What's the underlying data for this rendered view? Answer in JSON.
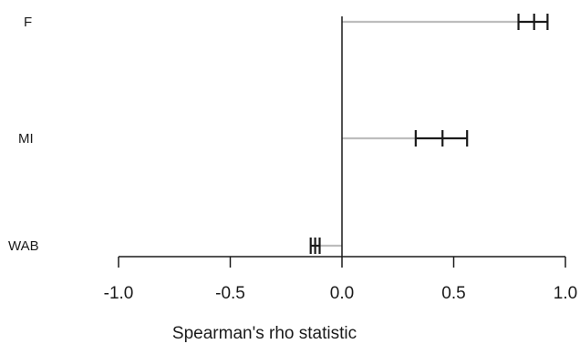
{
  "chart_data": {
    "type": "forest",
    "xlabel": "Spearman's rho statistic",
    "xlim": [
      -1.0,
      1.0
    ],
    "xticks": [
      -1.0,
      -0.5,
      0.0,
      0.5,
      1.0
    ],
    "xtick_labels": [
      "-1.0",
      "-0.5",
      "0.0",
      "0.5",
      "1.0"
    ],
    "reference_value": 0.0,
    "grid": false,
    "categories": [
      "F",
      "MI",
      "WAB"
    ],
    "series": [
      {
        "label": "F",
        "estimate": 0.86,
        "lower": 0.79,
        "upper": 0.92
      },
      {
        "label": "MI",
        "estimate": 0.45,
        "lower": 0.33,
        "upper": 0.56
      },
      {
        "label": "WAB",
        "estimate": -0.12,
        "lower": -0.14,
        "upper": -0.1
      }
    ],
    "colors": {
      "stem": "#bdbdbd",
      "interval": "#1a1a1a",
      "axis": "#1a1a1a"
    }
  }
}
